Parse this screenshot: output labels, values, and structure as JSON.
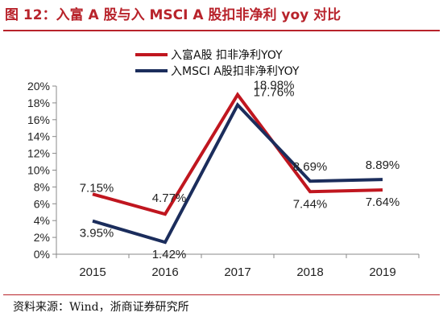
{
  "figure": {
    "title": "图 12：入富 A 股与入 MSCI A 股扣非净利 yoy 对比",
    "source": "资料来源：Wind，浙商证券研究所"
  },
  "colors": {
    "series1": "#c0161f",
    "series2": "#1b2d5c",
    "axis": "#888888"
  },
  "chart_data": {
    "type": "line",
    "title": "",
    "xlabel": "",
    "ylabel": "",
    "x": [
      "2015",
      "2016",
      "2017",
      "2018",
      "2019"
    ],
    "ylim": [
      0,
      20
    ],
    "yticks": [
      "0%",
      "2%",
      "4%",
      "6%",
      "8%",
      "10%",
      "12%",
      "14%",
      "16%",
      "18%",
      "20%"
    ],
    "grid": false,
    "legend_position": "top",
    "series": [
      {
        "name": "入富A股 扣非净利YOY",
        "values": [
          7.15,
          4.77,
          18.98,
          7.44,
          7.64
        ],
        "labels": [
          "7.15%",
          "4.77%",
          "18.98%",
          "7.44%",
          "7.64%"
        ]
      },
      {
        "name": "入MSCI A股扣非净利YOY",
        "values": [
          3.95,
          1.42,
          17.76,
          8.69,
          8.89
        ],
        "labels": [
          "3.95%",
          "1.42%",
          "17.76%",
          "8.69%",
          "8.89%"
        ]
      }
    ]
  }
}
